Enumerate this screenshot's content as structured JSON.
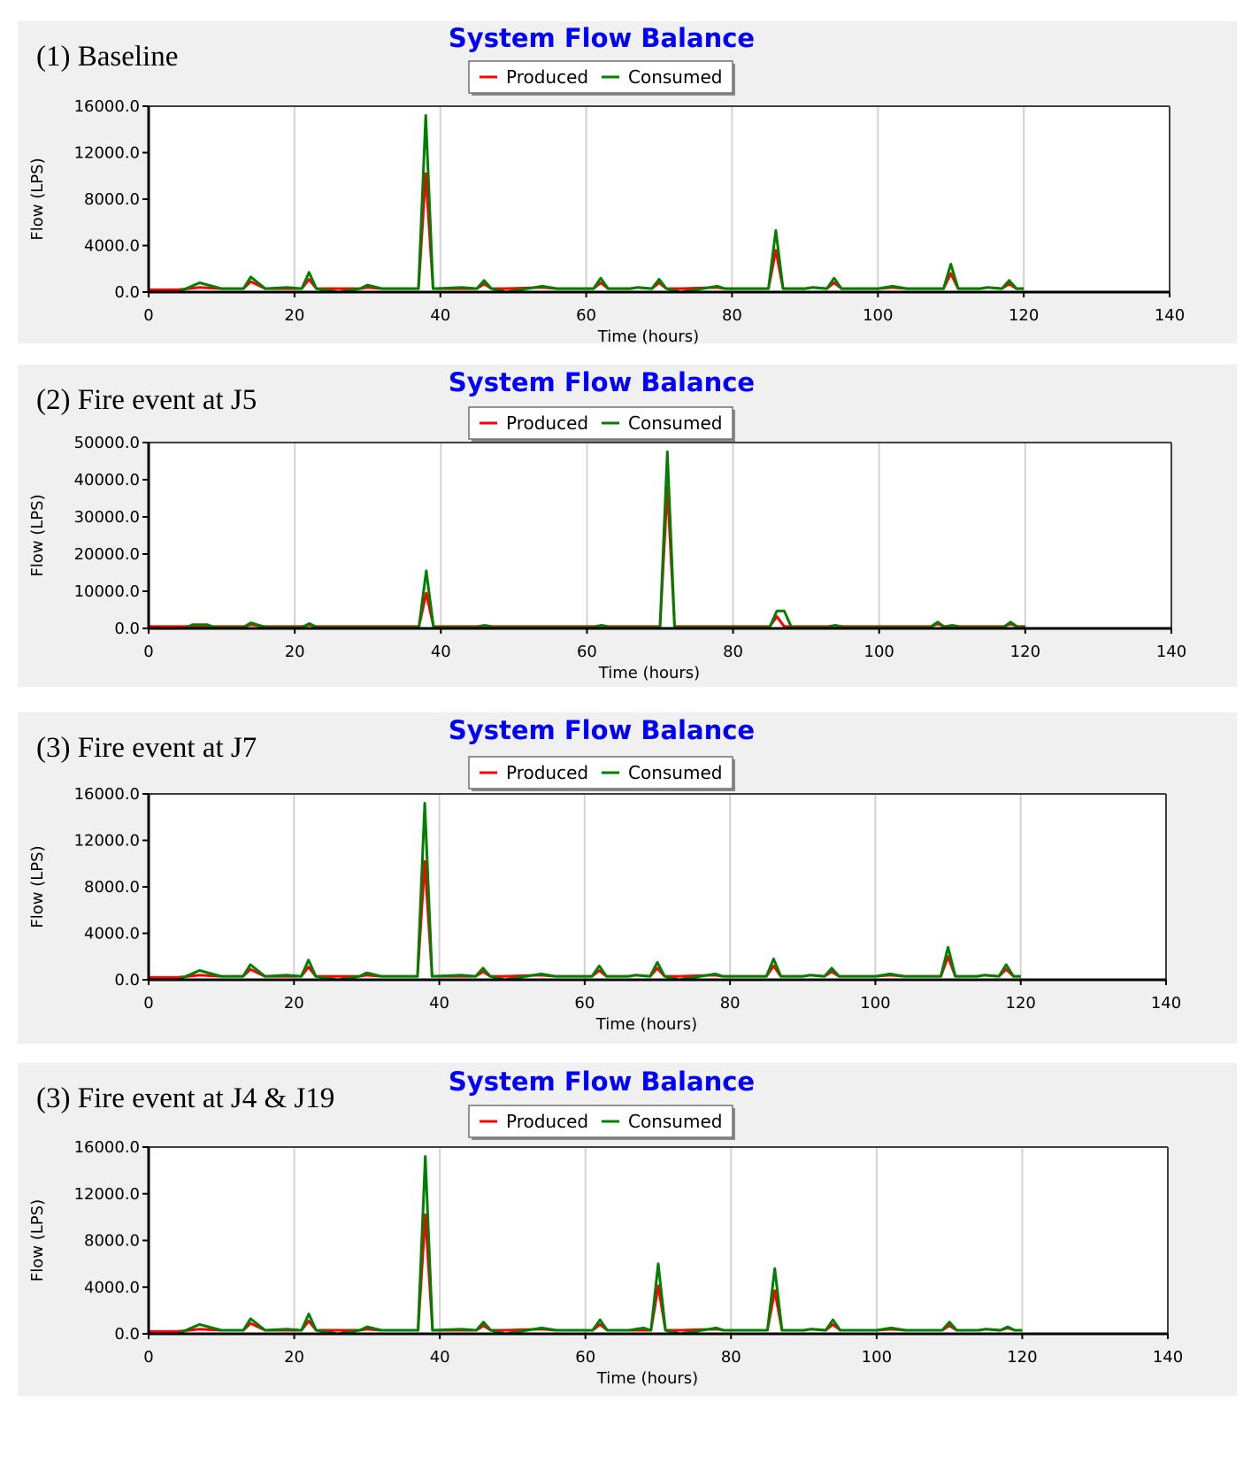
{
  "colors": {
    "produced": "#ff0000",
    "consumed": "#008000",
    "title": "#0000ff",
    "grid": "#d3d3d3",
    "panel_bg": "#f0f0f0"
  },
  "chart_data": [
    {
      "type": "line",
      "panel_label": "(1) Baseline",
      "title": "System Flow Balance",
      "xlabel": "Time (hours)",
      "ylabel": "Flow (LPS)",
      "xlim": [
        0,
        140
      ],
      "ylim": [
        0,
        16000
      ],
      "xticks": [
        "0",
        "20",
        "40",
        "60",
        "80",
        "100",
        "120",
        "140"
      ],
      "yticks": [
        "0.0",
        "4000.0",
        "8000.0",
        "12000.0",
        "16000.0"
      ],
      "grid": "vertical",
      "legend": "top-center",
      "series": [
        {
          "name": "Produced",
          "color": "#ff0000",
          "x": [
            0,
            4,
            7,
            10,
            13,
            14,
            16,
            19,
            21,
            22,
            23,
            26,
            29,
            30,
            32,
            37,
            38,
            39,
            43,
            45,
            46,
            47,
            49,
            54,
            56,
            61,
            62,
            63,
            66,
            67,
            69,
            70,
            71,
            73,
            78,
            79,
            84,
            85,
            86,
            87,
            90,
            91,
            93,
            94,
            95,
            100,
            102,
            104,
            109,
            110,
            111,
            114,
            115,
            117,
            118,
            119,
            120
          ],
          "y": [
            200,
            200,
            400,
            300,
            300,
            900,
            300,
            300,
            300,
            1100,
            300,
            300,
            300,
            400,
            300,
            300,
            10200,
            300,
            300,
            300,
            700,
            300,
            300,
            400,
            300,
            300,
            800,
            300,
            300,
            400,
            300,
            800,
            300,
            300,
            400,
            300,
            300,
            300,
            3600,
            300,
            300,
            400,
            300,
            800,
            300,
            300,
            400,
            300,
            300,
            1600,
            300,
            300,
            400,
            300,
            700,
            300,
            300
          ]
        },
        {
          "name": "Consumed",
          "color": "#008000",
          "x": [
            0,
            4,
            7,
            10,
            13,
            14,
            16,
            19,
            21,
            22,
            23,
            26,
            29,
            30,
            32,
            37,
            38,
            39,
            43,
            45,
            46,
            47,
            49,
            54,
            56,
            61,
            62,
            63,
            66,
            67,
            69,
            70,
            71,
            73,
            78,
            79,
            84,
            85,
            86,
            87,
            90,
            91,
            93,
            94,
            95,
            100,
            102,
            104,
            109,
            110,
            111,
            114,
            115,
            117,
            118,
            119,
            120
          ],
          "y": [
            0,
            0,
            800,
            300,
            300,
            1300,
            300,
            400,
            300,
            1700,
            300,
            0,
            300,
            600,
            300,
            300,
            15200,
            300,
            400,
            300,
            1000,
            300,
            0,
            500,
            300,
            300,
            1200,
            300,
            300,
            400,
            300,
            1100,
            300,
            0,
            500,
            300,
            300,
            300,
            5300,
            300,
            300,
            400,
            300,
            1200,
            300,
            300,
            500,
            300,
            300,
            2400,
            300,
            300,
            400,
            300,
            1000,
            300,
            300
          ]
        }
      ]
    },
    {
      "type": "line",
      "panel_label": "(2) Fire event at J5",
      "title": "System Flow Balance",
      "xlabel": "Time (hours)",
      "ylabel": "Flow (LPS)",
      "xlim": [
        0,
        140
      ],
      "ylim": [
        0,
        50000
      ],
      "xticks": [
        "0",
        "20",
        "40",
        "60",
        "80",
        "100",
        "120",
        "140"
      ],
      "yticks": [
        "0.0",
        "10000.0",
        "20000.0",
        "30000.0",
        "40000.0",
        "50000.0"
      ],
      "grid": "vertical",
      "legend": "top-center",
      "series": [
        {
          "name": "Produced",
          "color": "#ff0000",
          "x": [
            0,
            5,
            6,
            8,
            9,
            13,
            14,
            16,
            21,
            22,
            23,
            37,
            38,
            39,
            45,
            46,
            47,
            61,
            62,
            63,
            70,
            71,
            72,
            84,
            85,
            86,
            87,
            88,
            93,
            94,
            95,
            107,
            108,
            109,
            110,
            111,
            117,
            118,
            119,
            120
          ],
          "y": [
            500,
            500,
            700,
            700,
            500,
            500,
            1000,
            500,
            500,
            900,
            500,
            500,
            9500,
            500,
            500,
            800,
            500,
            500,
            800,
            500,
            500,
            38000,
            500,
            500,
            500,
            3200,
            500,
            500,
            500,
            800,
            500,
            500,
            1200,
            500,
            800,
            500,
            500,
            1200,
            500,
            500
          ]
        },
        {
          "name": "Consumed",
          "color": "#008000",
          "x": [
            0,
            5,
            6,
            8,
            9,
            13,
            14,
            16,
            21,
            22,
            23,
            37,
            38,
            39,
            45,
            46,
            47,
            61,
            62,
            63,
            70,
            71,
            72,
            84,
            85,
            86,
            87,
            88,
            93,
            94,
            95,
            107,
            108,
            109,
            110,
            111,
            117,
            118,
            119,
            120
          ],
          "y": [
            0,
            0,
            1000,
            1000,
            300,
            300,
            1500,
            300,
            300,
            1300,
            300,
            300,
            15500,
            300,
            300,
            800,
            300,
            300,
            800,
            300,
            300,
            47500,
            300,
            300,
            300,
            4700,
            4700,
            300,
            300,
            800,
            300,
            300,
            1700,
            300,
            800,
            300,
            300,
            1700,
            300,
            300
          ]
        }
      ]
    },
    {
      "type": "line",
      "panel_label": "(3) Fire event at J7",
      "title": "System Flow Balance",
      "xlabel": "Time (hours)",
      "ylabel": "Flow (LPS)",
      "xlim": [
        0,
        140
      ],
      "ylim": [
        0,
        16000
      ],
      "xticks": [
        "0",
        "20",
        "40",
        "60",
        "80",
        "100",
        "120",
        "140"
      ],
      "yticks": [
        "0.0",
        "4000.0",
        "8000.0",
        "12000.0",
        "16000.0"
      ],
      "grid": "vertical",
      "legend": "top-center",
      "series": [
        {
          "name": "Produced",
          "color": "#ff0000",
          "x": [
            0,
            4,
            7,
            10,
            13,
            14,
            16,
            19,
            21,
            22,
            23,
            26,
            29,
            30,
            32,
            37,
            38,
            39,
            43,
            45,
            46,
            47,
            49,
            54,
            56,
            61,
            62,
            63,
            66,
            67,
            69,
            70,
            71,
            73,
            78,
            79,
            84,
            85,
            86,
            87,
            90,
            91,
            93,
            94,
            95,
            100,
            102,
            104,
            109,
            110,
            111,
            114,
            115,
            117,
            118,
            119,
            120
          ],
          "y": [
            200,
            200,
            400,
            300,
            300,
            900,
            300,
            300,
            300,
            1100,
            300,
            300,
            300,
            400,
            300,
            300,
            10200,
            300,
            300,
            300,
            700,
            300,
            300,
            400,
            300,
            300,
            800,
            300,
            300,
            400,
            300,
            1000,
            300,
            300,
            400,
            300,
            300,
            300,
            1200,
            300,
            300,
            400,
            300,
            700,
            300,
            300,
            400,
            300,
            300,
            2000,
            300,
            300,
            400,
            300,
            900,
            300,
            300
          ]
        },
        {
          "name": "Consumed",
          "color": "#008000",
          "x": [
            0,
            4,
            7,
            10,
            13,
            14,
            16,
            19,
            21,
            22,
            23,
            26,
            29,
            30,
            32,
            37,
            38,
            39,
            43,
            45,
            46,
            47,
            49,
            54,
            56,
            61,
            62,
            63,
            66,
            67,
            69,
            70,
            71,
            73,
            78,
            79,
            84,
            85,
            86,
            87,
            90,
            91,
            93,
            94,
            95,
            100,
            102,
            104,
            109,
            110,
            111,
            114,
            115,
            117,
            118,
            119,
            120
          ],
          "y": [
            0,
            0,
            800,
            300,
            300,
            1300,
            300,
            400,
            300,
            1700,
            300,
            0,
            300,
            600,
            300,
            300,
            15200,
            300,
            400,
            300,
            1000,
            300,
            0,
            500,
            300,
            300,
            1200,
            300,
            300,
            400,
            300,
            1500,
            300,
            0,
            500,
            300,
            300,
            300,
            1800,
            300,
            300,
            400,
            300,
            1000,
            300,
            300,
            500,
            300,
            300,
            2800,
            300,
            300,
            400,
            300,
            1300,
            300,
            300
          ]
        }
      ]
    },
    {
      "type": "line",
      "panel_label": "(3) Fire event at J4 & J19",
      "title": "System Flow Balance",
      "xlabel": "Time (hours)",
      "ylabel": "Flow (LPS)",
      "xlim": [
        0,
        140
      ],
      "ylim": [
        0,
        16000
      ],
      "xticks": [
        "0",
        "20",
        "40",
        "60",
        "80",
        "100",
        "120",
        "140"
      ],
      "yticks": [
        "0.0",
        "4000.0",
        "8000.0",
        "12000.0",
        "16000.0"
      ],
      "grid": "vertical",
      "legend": "top-center",
      "series": [
        {
          "name": "Produced",
          "color": "#ff0000",
          "x": [
            0,
            4,
            7,
            10,
            13,
            14,
            16,
            19,
            21,
            22,
            23,
            26,
            29,
            30,
            32,
            37,
            38,
            39,
            43,
            45,
            46,
            47,
            49,
            54,
            56,
            61,
            62,
            63,
            66,
            68,
            69,
            70,
            71,
            73,
            78,
            79,
            84,
            85,
            86,
            87,
            90,
            91,
            93,
            94,
            95,
            100,
            102,
            104,
            109,
            110,
            111,
            114,
            115,
            117,
            118,
            119,
            120
          ],
          "y": [
            200,
            200,
            400,
            300,
            300,
            900,
            300,
            300,
            300,
            1100,
            300,
            300,
            300,
            400,
            300,
            300,
            10200,
            300,
            300,
            300,
            700,
            300,
            300,
            400,
            300,
            300,
            800,
            300,
            300,
            300,
            300,
            4100,
            300,
            300,
            400,
            300,
            300,
            300,
            3700,
            300,
            300,
            400,
            300,
            800,
            300,
            300,
            400,
            300,
            300,
            700,
            300,
            300,
            400,
            300,
            500,
            300,
            300
          ]
        },
        {
          "name": "Consumed",
          "color": "#008000",
          "x": [
            0,
            4,
            7,
            10,
            13,
            14,
            16,
            19,
            21,
            22,
            23,
            26,
            29,
            30,
            32,
            37,
            38,
            39,
            43,
            45,
            46,
            47,
            49,
            54,
            56,
            61,
            62,
            63,
            66,
            68,
            69,
            70,
            71,
            73,
            78,
            79,
            84,
            85,
            86,
            87,
            90,
            91,
            93,
            94,
            95,
            100,
            102,
            104,
            109,
            110,
            111,
            114,
            115,
            117,
            118,
            119,
            120
          ],
          "y": [
            0,
            0,
            800,
            300,
            300,
            1300,
            300,
            400,
            300,
            1700,
            300,
            0,
            300,
            600,
            300,
            300,
            15200,
            300,
            400,
            300,
            1000,
            300,
            0,
            500,
            300,
            300,
            1200,
            300,
            300,
            500,
            300,
            6000,
            300,
            0,
            500,
            300,
            300,
            300,
            5600,
            300,
            300,
            400,
            300,
            1200,
            300,
            300,
            500,
            300,
            300,
            1000,
            300,
            300,
            400,
            300,
            600,
            300,
            300
          ]
        }
      ]
    }
  ]
}
